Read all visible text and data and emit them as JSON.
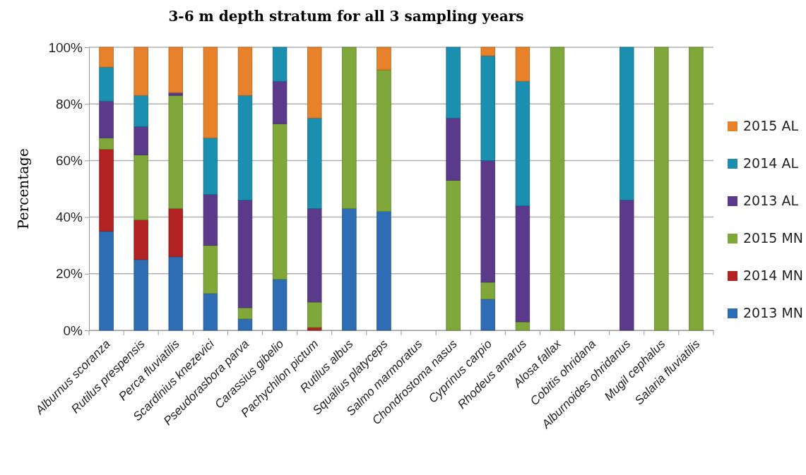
{
  "chart_data": {
    "type": "bar",
    "stacked": true,
    "title": "3-6 m depth stratum for all 3 sampling years",
    "ylabel": "Percentage",
    "categories": [
      "Alburnus scoranza",
      "Rutilus prespensis",
      "Perca fluviatilis",
      "Scardinius knezevici",
      "Pseudorasbora parva",
      "Carassius gibelio",
      "Pachychilon pictum",
      "Rutilus albus",
      "Squalius platyceps",
      "Salmo marmoratus",
      "Chondrostoma nasus",
      "Cyprinus carpio",
      "Rhodeus amarus",
      "Alosa fallax",
      "Cobitis ohridana",
      "Alburnoides ohridanus",
      "Mugil cephalus",
      "Salaria fluviatilis"
    ],
    "series": [
      {
        "name": "2013 MN",
        "color": "#2e6db4",
        "values": [
          35,
          25,
          26,
          13,
          4,
          18,
          0,
          43,
          42,
          0,
          0,
          11,
          0,
          0,
          0,
          0,
          0,
          0
        ]
      },
      {
        "name": "2014 MN",
        "color": "#b22222",
        "values": [
          29,
          14,
          17,
          0,
          0,
          0,
          1,
          0,
          0,
          0,
          0,
          0,
          0,
          0,
          0,
          0,
          0,
          0
        ]
      },
      {
        "name": "2015 MN",
        "color": "#7fa73a",
        "values": [
          4,
          23,
          40,
          17,
          4,
          55,
          9,
          57,
          50,
          0,
          53,
          6,
          3,
          100,
          0,
          0,
          100,
          100
        ]
      },
      {
        "name": "2013 AL",
        "color": "#5b3a8c",
        "values": [
          13,
          10,
          1,
          18,
          38,
          15,
          33,
          0,
          0,
          0,
          22,
          43,
          41,
          0,
          0,
          46,
          0,
          0
        ]
      },
      {
        "name": "2014 AL",
        "color": "#1b8fb0",
        "values": [
          12,
          11,
          0,
          20,
          37,
          12,
          32,
          0,
          0,
          0,
          25,
          37,
          44,
          0,
          0,
          54,
          0,
          0
        ]
      },
      {
        "name": "2015 AL",
        "color": "#e8822a",
        "values": [
          7,
          17,
          16,
          32,
          17,
          0,
          25,
          0,
          8,
          0,
          0,
          3,
          12,
          0,
          0,
          0,
          0,
          0
        ]
      }
    ],
    "ylim": [
      0,
      100
    ],
    "yticks": [
      {
        "value": 0,
        "label": "0%"
      },
      {
        "value": 20,
        "label": "20%"
      },
      {
        "value": 40,
        "label": "40%"
      },
      {
        "value": 60,
        "label": "60%"
      },
      {
        "value": 80,
        "label": "80%"
      },
      {
        "value": 100,
        "label": "100%"
      }
    ],
    "grid": "y",
    "legend": "right"
  }
}
